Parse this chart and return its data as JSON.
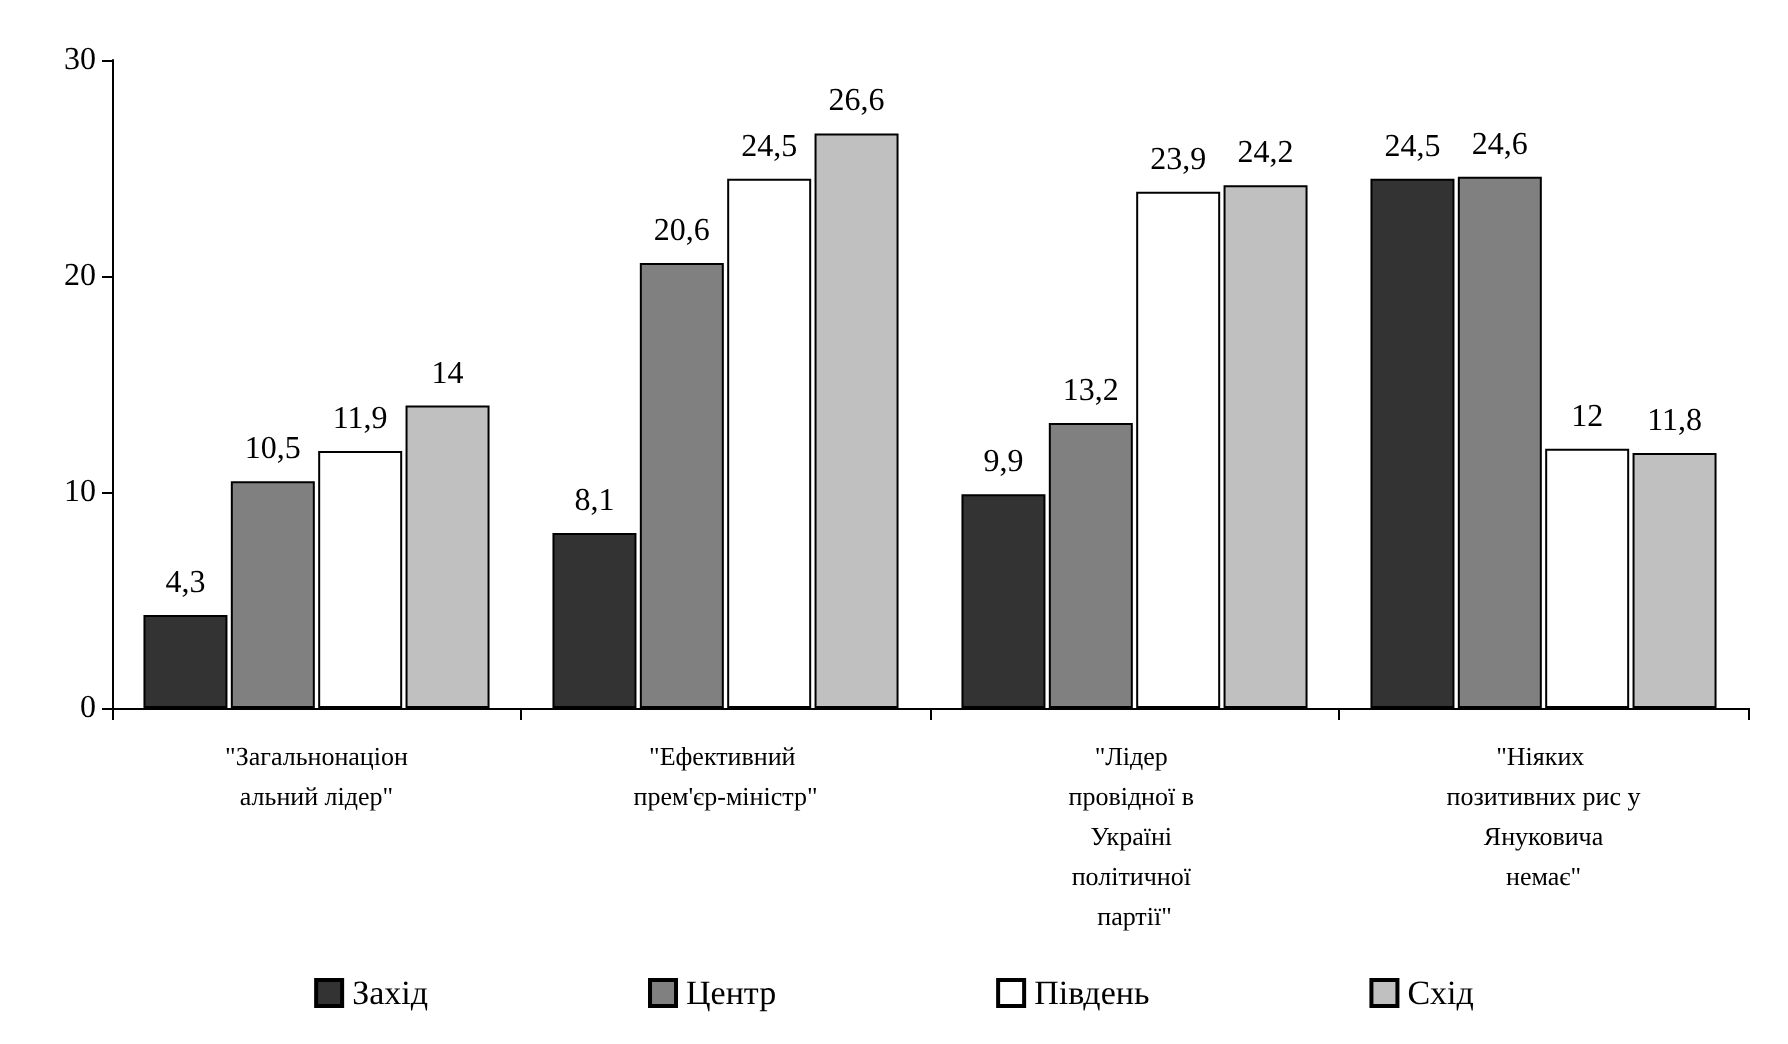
{
  "chart_data": {
    "type": "bar",
    "categories": [
      "\"Загальнонаціональний лідер\"",
      "\"Ефективний прем'єр-міністр\"",
      "\"Лідер провідної в Україні політичної партії\"",
      "\"Ніяких позитивних рис у Януковича немає\""
    ],
    "series": [
      {
        "name": "Захід",
        "color": "#333333",
        "values": [
          4.3,
          8.1,
          9.9,
          24.5
        ],
        "value_labels": [
          "4,3",
          "8,1",
          "9,9",
          "24,5"
        ]
      },
      {
        "name": "Центр",
        "color": "#808080",
        "values": [
          10.5,
          20.6,
          13.2,
          24.6
        ],
        "value_labels": [
          "10,5",
          "20,6",
          "13,2",
          "24,6"
        ]
      },
      {
        "name": "Південь",
        "color": "#ffffff",
        "values": [
          11.9,
          24.5,
          23.9,
          12
        ],
        "value_labels": [
          "11,9",
          "24,5",
          "23,9",
          "12"
        ]
      },
      {
        "name": "Схід",
        "color": "#c0c0c0",
        "values": [
          14,
          26.6,
          24.2,
          11.8
        ],
        "value_labels": [
          "14",
          "26,6",
          "24,2",
          "11,8"
        ]
      }
    ],
    "ylim": [
      0,
      30
    ],
    "yticks": [
      0,
      10,
      20,
      30
    ],
    "grid": false,
    "legend": "bottom"
  }
}
